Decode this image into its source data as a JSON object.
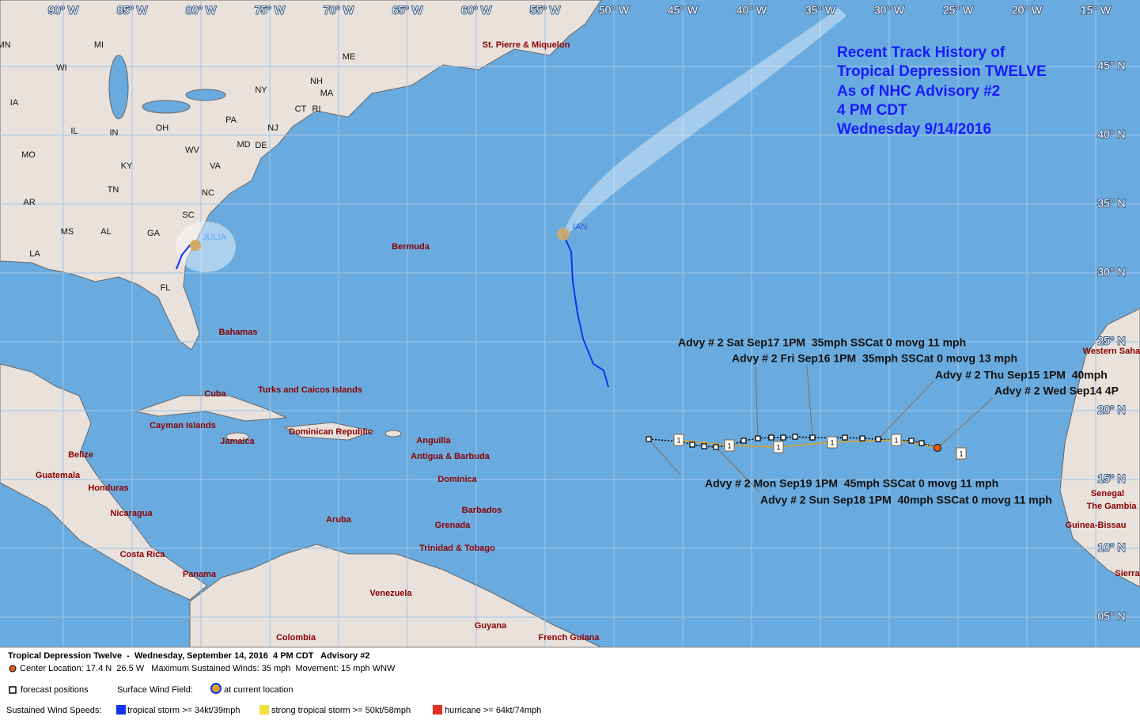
{
  "map": {
    "lon_labels": [
      "90° W",
      "85° W",
      "80° W",
      "75° W",
      "70° W",
      "65° W",
      "60° W",
      "55° W",
      "50° W",
      "45° W",
      "40° W",
      "35° W",
      "30° W",
      "25° W",
      "20° W",
      "15° W"
    ],
    "lat_labels": [
      "45° N",
      "40° N",
      "35° N",
      "30° N",
      "25° N",
      "20° N",
      "15° N",
      "10° N",
      "05° N"
    ],
    "places": [
      "St. Pierre & Miquelon",
      "Bermuda",
      "Bahamas",
      "Turks and Caicos Islands",
      "Cuba",
      "Cayman Islands",
      "Jamaica",
      "Dominican Republic",
      "Anguilla",
      "Antigua & Barbuda",
      "Dominica",
      "Barbados",
      "Grenada",
      "Aruba",
      "Trinidad & Tobago",
      "Belize",
      "Guatemala",
      "Honduras",
      "Nicaragua",
      "Costa Rica",
      "Panama",
      "Venezuela",
      "Colombia",
      "Guyana",
      "French Guiana",
      "Western Sahara",
      "Senegal",
      "The Gambia",
      "Guinea-Bissau",
      "Sierra"
    ],
    "states": [
      "MN",
      "MI",
      "WI",
      "IA",
      "IL",
      "IN",
      "OH",
      "MO",
      "KY",
      "WV",
      "VA",
      "AR",
      "TN",
      "NC",
      "SC",
      "MS",
      "AL",
      "GA",
      "LA",
      "FL",
      "PA",
      "NY",
      "ME",
      "NH",
      "MA",
      "CT",
      "RI",
      "NJ",
      "MD",
      "DE"
    ],
    "storms": [
      "JULIA",
      "IAN"
    ],
    "advisories": [
      "Advy # 2 Sat Sep17 1PM  35mph SSCat 0 movg 11 mph",
      "Advy # 2 Fri Sep16 1PM  35mph SSCat 0 movg 13 mph",
      "Advy # 2 Thu Sep15 1PM  40mph",
      "Advy # 2 Wed Sep14 4P",
      "Advy # 2 Mon Sep19 1PM  45mph SSCat 0 movg 11 mph",
      "Advy # 2 Sun Sep18 1PM  40mph SSCat 0 movg 11 mph"
    ],
    "forecast_marker": "1"
  },
  "annotation": {
    "lines": [
      "Recent Track History of",
      "Tropical Depression TWELVE",
      "As of NHC Advisory #2",
      "4 PM CDT",
      "Wednesday 9/14/2016"
    ]
  },
  "footer": {
    "title": "Tropical Depression Twelve  -  Wednesday, September 14, 2016  4 PM CDT   Advisory #2",
    "center": "Center Location: 17.4 N  26.5 W   Maximum Sustained Winds: 35 mph  Movement: 15 mph WNW",
    "forecast_positions": "forecast positions",
    "wind_field": "Surface Wind Field:",
    "current_location": "at current location",
    "wind_speeds": "Sustained Wind Speeds:",
    "legend": [
      "tropical storm >= 34kt/39mph",
      "strong tropical storm >= 50kt/58mph",
      "hurricane >= 64kt/74mph"
    ]
  }
}
